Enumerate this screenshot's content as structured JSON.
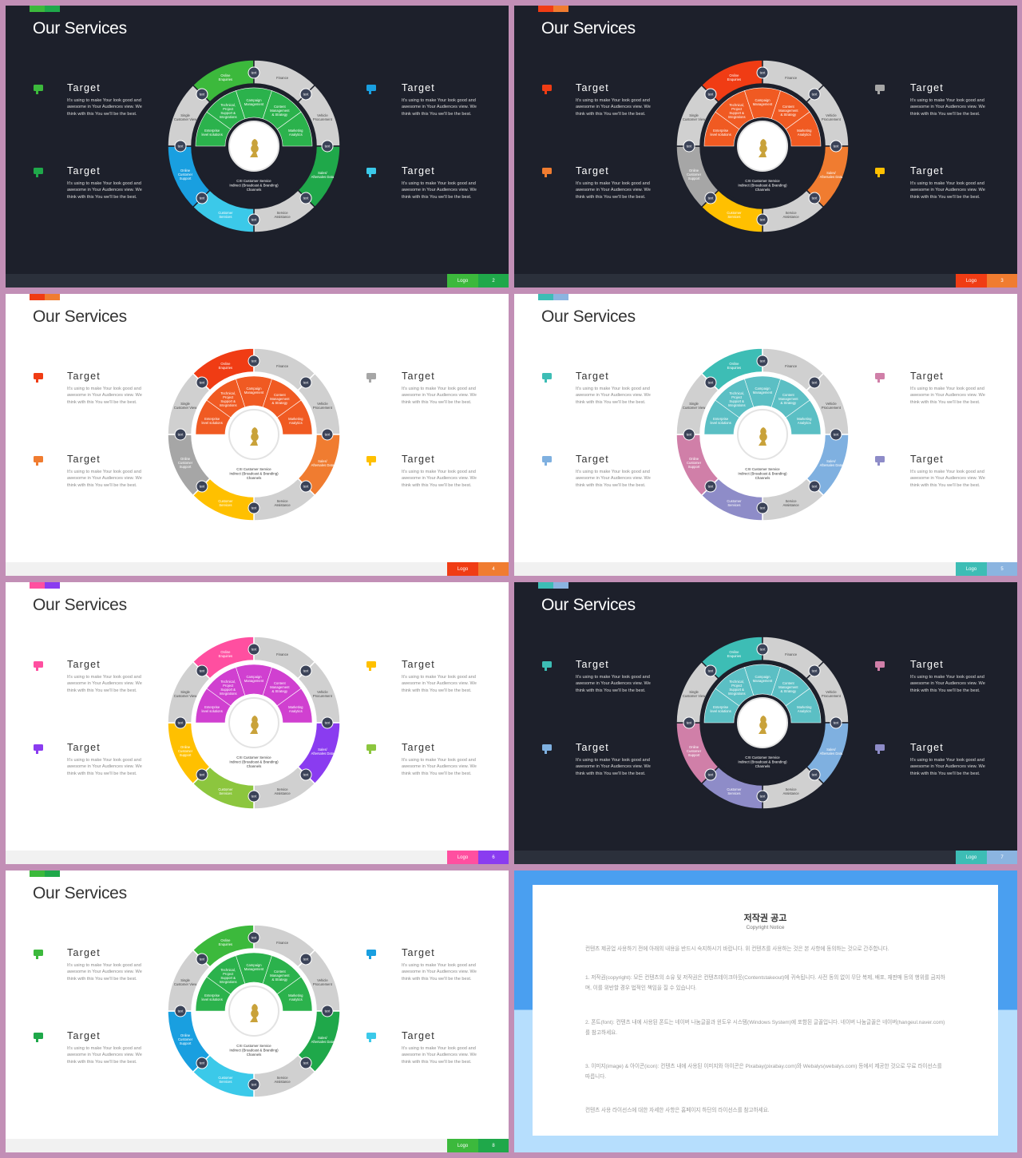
{
  "shared": {
    "title": "Our Services",
    "target_heading": "Target",
    "target_text": "It's using to make Your look good and awesome in Your Audiences view. We think with this You we'll be the best.",
    "logo": "Logo",
    "marker": "text",
    "outer_labels": [
      "Online Enquiries",
      "Finance",
      "Vehicle Procurement",
      "Sales/ Aftersales Data",
      "Service Assistance",
      "Customer Services",
      "Online Customer Support",
      "Single Customer View"
    ],
    "inner_labels": [
      "Enterprise level solutions",
      "Technical, Project Support & Integrations",
      "Campaign Management",
      "Content Management & Strategy",
      "Marketing Analytics"
    ],
    "center_text": [
      "CXI Customer Service",
      "Indirect (Broadcast & Branding)",
      "Channels"
    ]
  },
  "slides": [
    {
      "theme": "dark",
      "page": 2,
      "accent": [
        "#3cb93c",
        "#1fa84a"
      ],
      "segments": [
        "#3cb93c",
        "#1fa84a",
        "#3bc9e9",
        "#199fe0"
      ],
      "inner": "#2bb24c",
      "icons": [
        "#3cb93c",
        "#1fa84a",
        "#199fe0",
        "#3bc9e9"
      ]
    },
    {
      "theme": "dark",
      "page": 3,
      "accent": [
        "#f03c14",
        "#f07c30"
      ],
      "segments": [
        "#f03c14",
        "#f07c30",
        "#ffc000",
        "#a6a6a6"
      ],
      "inner": "#f05a22",
      "icons": [
        "#f03c14",
        "#f07c30",
        "#a6a6a6",
        "#ffc000"
      ]
    },
    {
      "theme": "light",
      "page": 4,
      "accent": [
        "#f03c14",
        "#f07c30"
      ],
      "segments": [
        "#f03c14",
        "#f07c30",
        "#ffc000",
        "#a6a6a6"
      ],
      "inner": "#f05a22",
      "icons": [
        "#f03c14",
        "#f07c30",
        "#a6a6a6",
        "#ffc000"
      ]
    },
    {
      "theme": "light",
      "page": 5,
      "accent": [
        "#3dbdb5",
        "#8bb4e0"
      ],
      "segments": [
        "#3dbdb5",
        "#7fb0e0",
        "#8e8cc8",
        "#d07fa8"
      ],
      "inner": "#5bbfc4",
      "icons": [
        "#3dbdb5",
        "#7fb0e0",
        "#d07fa8",
        "#8e8cc8"
      ]
    },
    {
      "theme": "light",
      "page": 6,
      "accent": [
        "#ff4fa0",
        "#8a3cf0"
      ],
      "segments": [
        "#ff4fa0",
        "#8a3cf0",
        "#8cc63e",
        "#ffc000"
      ],
      "inner": "#d040d0",
      "icons": [
        "#ff4fa0",
        "#8a3cf0",
        "#ffc000",
        "#8cc63e"
      ]
    },
    {
      "theme": "dark",
      "page": 7,
      "accent": [
        "#3dbdb5",
        "#8bb4e0"
      ],
      "segments": [
        "#3dbdb5",
        "#7fb0e0",
        "#8e8cc8",
        "#d07fa8"
      ],
      "inner": "#5bbfc4",
      "icons": [
        "#3dbdb5",
        "#7fb0e0",
        "#d07fa8",
        "#8e8cc8"
      ]
    },
    {
      "theme": "light",
      "page": 8,
      "accent": [
        "#3cb93c",
        "#1fa84a"
      ],
      "segments": [
        "#3cb93c",
        "#1fa84a",
        "#3bc9e9",
        "#199fe0"
      ],
      "inner": "#2bb24c",
      "icons": [
        "#3cb93c",
        "#1fa84a",
        "#199fe0",
        "#3bc9e9"
      ]
    }
  ],
  "copyright": {
    "title": "저작권 공고",
    "subtitle": "Copyright Notice",
    "paragraphs": [
      "컨텐츠 제공업 사용하기 전에 아래의 내용을 반드시 숙지하시기 바랍니다. 위 컨텐츠를 사용하는 것은 본 사항에 동의하는 것으로 간주합니다.",
      "1. 저작권(copyright): 모든 컨텐츠의 소유 및 저작권은 컨텐츠테이크아웃(Contentstakeout)에 귀속됩니다. 사전 동의 없이 무단 복제, 배포, 재판매 등의 행위를 금지하며, 이를 위반할 경우 법적인 책임을 질 수 있습니다.",
      "2. 폰트(font): 컨텐츠 내에 사용된 폰트는 네이버 나눔글꼴과 윈도우 시스템(Windows System)에 포함된 글꼴입니다. 네이버 나눔글꼴은 네이버(hangeul.naver.com)를 참고하세요.",
      "3. 이미지(image) & 아이콘(icon): 컨텐츠 내에 사용된 이미지와 아이콘은 Pixabay(pixabay.com)와 Webalys(webalys.com) 등에서 제공한 것으로 무료 라이선스를 따릅니다.",
      "컨텐츠 사용 라이선스에 대한 자세한 사항은 홈페이지 하단의 라이선스를 참고하세요."
    ]
  }
}
